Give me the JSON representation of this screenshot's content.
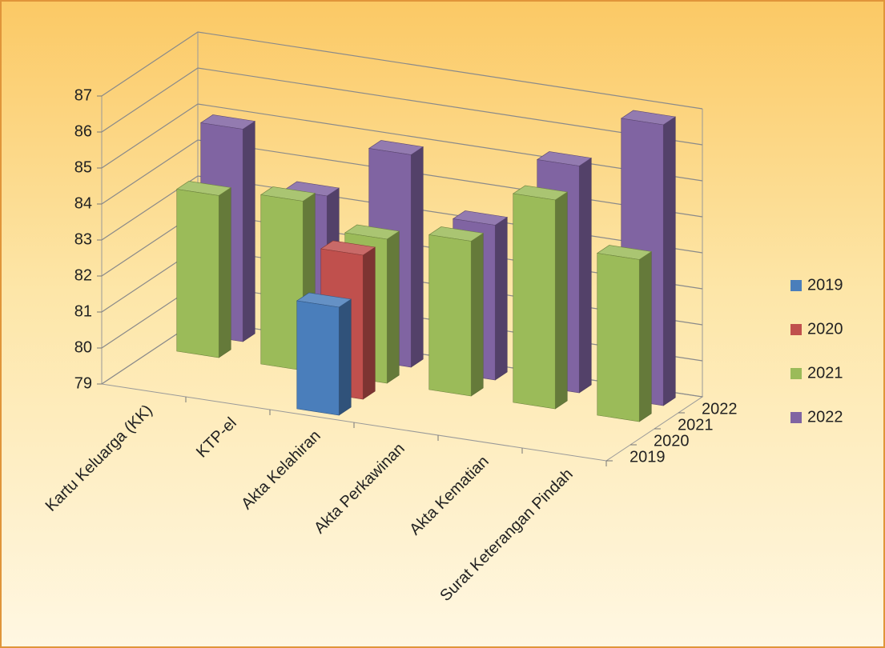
{
  "chart_data": {
    "type": "bar3d",
    "categories": [
      "Kartu Keluarga (KK)",
      "KTP-el",
      "Akta Kelahiran",
      "Akta Perkawinan",
      "Akta Kematian",
      "Surat Keterangan Pindah"
    ],
    "series": [
      {
        "name": "2019",
        "color": "#4a7ebb",
        "values": [
          null,
          null,
          82,
          null,
          null,
          null
        ]
      },
      {
        "name": "2020",
        "color": "#c0504d",
        "values": [
          null,
          null,
          83,
          null,
          null,
          null
        ]
      },
      {
        "name": "2021",
        "color": "#9bbb59",
        "values": [
          83.5,
          83.7,
          83,
          83.3,
          84.8,
          83.5
        ]
      },
      {
        "name": "2022",
        "color": "#8064a2",
        "values": [
          84.9,
          83.4,
          84.9,
          83.3,
          85.3,
          86.8
        ]
      }
    ],
    "ylim": [
      79,
      87
    ],
    "yticks": [
      79,
      80,
      81,
      82,
      83,
      84,
      85,
      86,
      87
    ],
    "grid": true
  }
}
